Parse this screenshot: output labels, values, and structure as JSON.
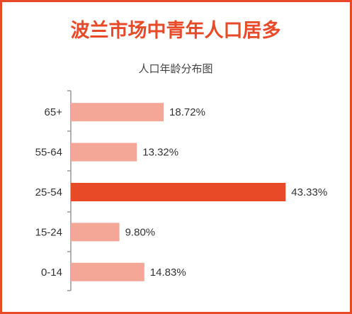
{
  "chart_data": {
    "type": "hbar",
    "title": "波兰市场中青年人口居多",
    "subtitle": "人口年龄分布图",
    "categories": [
      "65+",
      "55-64",
      "25-54",
      "15-24",
      "0-14"
    ],
    "values": [
      18.72,
      13.32,
      43.33,
      9.8,
      14.83
    ],
    "value_labels": [
      "18.72%",
      "13.32%",
      "43.33%",
      "9.80%",
      "14.83%"
    ],
    "colors": [
      "#f4a797",
      "#f4a797",
      "#e84a27",
      "#f4a797",
      "#f4a797"
    ],
    "xlim": [
      0,
      50
    ]
  }
}
